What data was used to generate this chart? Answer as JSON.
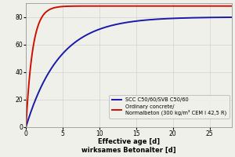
{
  "xlabel_en": "Effective age [d]",
  "xlabel_de": "wirksames Betonalter [d]",
  "xlim": [
    0,
    28
  ],
  "ylim": [
    0,
    90
  ],
  "yticks": [
    0,
    20,
    40,
    60,
    80
  ],
  "xticks": [
    0,
    5,
    10,
    15,
    20,
    25
  ],
  "scc_color": "#1a1aaa",
  "ordinary_color": "#cc1100",
  "scc_label": "SCC C50/60/SVB C50/60",
  "ordinary_label": "Ordinary concrete/\nNormalbeton (300 kg/m³ CEM I 42,5 R)",
  "scc_asymptote": 80,
  "scc_k": 0.22,
  "ordinary_asymptote": 88,
  "ordinary_k": 1.1,
  "background_color": "#f0f0ea",
  "grid_color": "#cccccc",
  "line_width": 1.4,
  "legend_fontsize": 4.8,
  "tick_fontsize": 5.5,
  "axis_label_fontsize": 6.0,
  "axis_label_fontsize_de": 5.5
}
